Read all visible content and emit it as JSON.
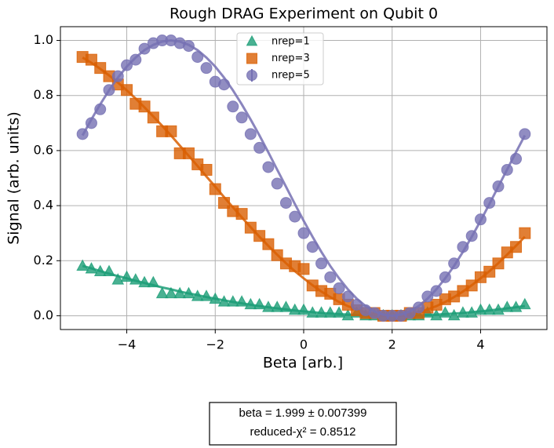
{
  "chart_data": {
    "type": "scatter",
    "title": "Rough DRAG Experiment on Qubit 0",
    "xlabel": "Beta [arb.]",
    "ylabel": "Signal (arb. units)",
    "annotation": [
      "beta =   1.999 ±  0.007399",
      "reduced-χ² =  0.8512"
    ],
    "x": [
      -5,
      -4.8,
      -4.6,
      -4.4,
      -4.2,
      -4,
      -3.8,
      -3.6,
      -3.4,
      -3.2,
      -3,
      -2.8,
      -2.6,
      -2.4,
      -2.2,
      -2,
      -1.8,
      -1.6,
      -1.4,
      -1.2,
      -1,
      -0.8,
      -0.6,
      -0.4,
      -0.2,
      0,
      0.2,
      0.4,
      0.6,
      0.8,
      1,
      1.2,
      1.4,
      1.6,
      1.8,
      2,
      2.2,
      2.4,
      2.6,
      2.8,
      3,
      3.2,
      3.4,
      3.6,
      3.8,
      4,
      4.2,
      4.4,
      4.6,
      4.8,
      5
    ],
    "series": [
      {
        "name": "nrep=1",
        "color": "#1b9e77",
        "marker": "triangle",
        "values": [
          0.18,
          0.17,
          0.16,
          0.16,
          0.13,
          0.14,
          0.13,
          0.12,
          0.12,
          0.08,
          0.08,
          0.08,
          0.08,
          0.07,
          0.07,
          0.06,
          0.05,
          0.05,
          0.05,
          0.04,
          0.04,
          0.03,
          0.03,
          0.03,
          0.02,
          0.02,
          0.01,
          0.01,
          0.01,
          0.01,
          0,
          0.01,
          0,
          0,
          0,
          0,
          0,
          0,
          0,
          0.01,
          0,
          0.01,
          0,
          0.01,
          0.01,
          0.02,
          0.02,
          0.02,
          0.03,
          0.03,
          0.04
        ],
        "fit": [
          0.181,
          0.172,
          0.162,
          0.153,
          0.144,
          0.136,
          0.127,
          0.119,
          0.111,
          0.103,
          0.096,
          0.088,
          0.081,
          0.075,
          0.068,
          0.062,
          0.056,
          0.05,
          0.045,
          0.04,
          0.035,
          0.031,
          0.027,
          0.023,
          0.019,
          0.016,
          0.013,
          0.01,
          0.008,
          0.006,
          0.004,
          0.003,
          0.001,
          0.001,
          0,
          0,
          0,
          0.001,
          0.001,
          0.003,
          0.004,
          0.006,
          0.008,
          0.01,
          0.013,
          0.016,
          0.019,
          0.023,
          0.027,
          0.031,
          0.035
        ]
      },
      {
        "name": "nrep=3",
        "color": "#d95f02",
        "marker": "square",
        "values": [
          0.94,
          0.93,
          0.9,
          0.87,
          0.84,
          0.82,
          0.77,
          0.76,
          0.72,
          0.67,
          0.67,
          0.59,
          0.59,
          0.55,
          0.53,
          0.46,
          0.41,
          0.38,
          0.37,
          0.32,
          0.29,
          0.26,
          0.22,
          0.19,
          0.18,
          0.17,
          0.11,
          0.09,
          0.08,
          0.06,
          0.04,
          0.02,
          0.01,
          0.01,
          0,
          0,
          0,
          0.01,
          0.01,
          0.03,
          0.04,
          0.06,
          0.07,
          0.09,
          0.11,
          0.14,
          0.16,
          0.19,
          0.23,
          0.25,
          0.3
        ],
        "fit": [
          0.938,
          0.919,
          0.897,
          0.873,
          0.847,
          0.819,
          0.789,
          0.757,
          0.724,
          0.69,
          0.655,
          0.618,
          0.581,
          0.544,
          0.506,
          0.469,
          0.431,
          0.394,
          0.358,
          0.322,
          0.287,
          0.254,
          0.222,
          0.191,
          0.162,
          0.136,
          0.111,
          0.088,
          0.068,
          0.05,
          0.035,
          0.023,
          0.013,
          0.006,
          0.001,
          0,
          0.001,
          0.006,
          0.013,
          0.023,
          0.035,
          0.05,
          0.068,
          0.088,
          0.111,
          0.136,
          0.162,
          0.191,
          0.222,
          0.254,
          0.287
        ]
      },
      {
        "name": "nrep=5",
        "color": "#7570b3",
        "marker": "circle",
        "values": [
          0.66,
          0.7,
          0.75,
          0.82,
          0.87,
          0.91,
          0.93,
          0.97,
          0.99,
          1.0,
          1.0,
          0.99,
          0.98,
          0.94,
          0.9,
          0.85,
          0.84,
          0.76,
          0.72,
          0.66,
          0.61,
          0.54,
          0.48,
          0.41,
          0.36,
          0.3,
          0.25,
          0.19,
          0.14,
          0.1,
          0.07,
          0.04,
          0.02,
          0.01,
          0,
          0,
          0,
          0.01,
          0.03,
          0.07,
          0.09,
          0.14,
          0.19,
          0.25,
          0.29,
          0.35,
          0.41,
          0.47,
          0.53,
          0.57,
          0.66
        ],
        "fit": [
          0.655,
          0.713,
          0.768,
          0.819,
          0.865,
          0.905,
          0.938,
          0.965,
          0.984,
          0.996,
          1,
          0.996,
          0.984,
          0.965,
          0.938,
          0.905,
          0.865,
          0.819,
          0.768,
          0.713,
          0.655,
          0.594,
          0.531,
          0.469,
          0.406,
          0.345,
          0.287,
          0.232,
          0.181,
          0.136,
          0.096,
          0.062,
          0.035,
          0.016,
          0.004,
          0,
          0.004,
          0.016,
          0.035,
          0.062,
          0.096,
          0.136,
          0.181,
          0.232,
          0.287,
          0.345,
          0.406,
          0.469,
          0.531,
          0.594,
          0.655
        ]
      }
    ],
    "xlim": [
      -5.5,
      5.5
    ],
    "ylim": [
      -0.05,
      1.05
    ],
    "xticks": [
      {
        "value": -4,
        "label": "−4"
      },
      {
        "value": -2,
        "label": "−2"
      },
      0,
      2,
      4
    ],
    "yticks": [
      {
        "value": 0,
        "label": "0.0"
      },
      0.2,
      0.4,
      0.6,
      0.8,
      {
        "value": 1,
        "label": "1.0"
      }
    ],
    "grid": true,
    "legend": "upper center"
  }
}
